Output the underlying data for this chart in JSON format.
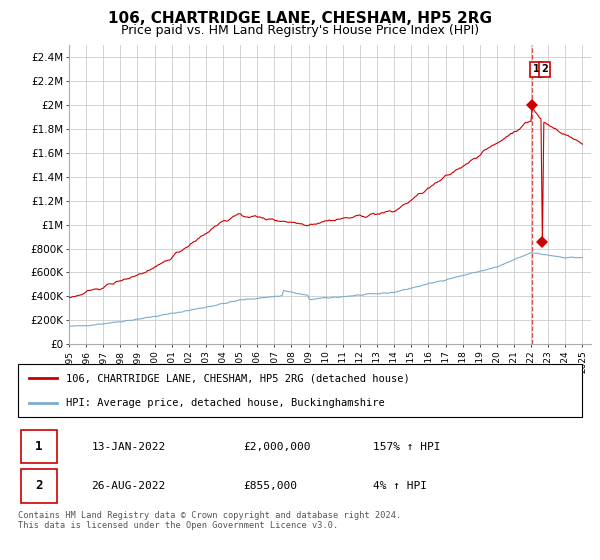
{
  "title": "106, CHARTRIDGE LANE, CHESHAM, HP5 2RG",
  "subtitle": "Price paid vs. HM Land Registry's House Price Index (HPI)",
  "title_fontsize": 11,
  "subtitle_fontsize": 9,
  "yticks": [
    0,
    200000,
    400000,
    600000,
    800000,
    1000000,
    1200000,
    1400000,
    1600000,
    1800000,
    2000000,
    2200000,
    2400000
  ],
  "ytick_labels": [
    "£0",
    "£200K",
    "£400K",
    "£600K",
    "£800K",
    "£1M",
    "£1.2M",
    "£1.4M",
    "£1.6M",
    "£1.8M",
    "£2M",
    "£2.2M",
    "£2.4M"
  ],
  "xlim_start": 1995.0,
  "xlim_end": 2025.5,
  "ylim_min": 0,
  "ylim_max": 2500000,
  "red_line_color": "#cc0000",
  "blue_line_color": "#7aadcf",
  "annotation_box_color": "#cc0000",
  "grid_color": "#cccccc",
  "background_color": "#ffffff",
  "legend_label_red": "106, CHARTRIDGE LANE, CHESHAM, HP5 2RG (detached house)",
  "legend_label_blue": "HPI: Average price, detached house, Buckinghamshire",
  "table_row1": [
    "1",
    "13-JAN-2022",
    "£2,000,000",
    "157% ↑ HPI"
  ],
  "table_row2": [
    "2",
    "26-AUG-2022",
    "£855,000",
    "4% ↑ HPI"
  ],
  "footnote": "Contains HM Land Registry data © Crown copyright and database right 2024.\nThis data is licensed under the Open Government Licence v3.0.",
  "sale1_x": 2022.04,
  "sale1_y": 2000000,
  "sale2_x": 2022.65,
  "sale2_y": 855000,
  "vline_x": 2022.04
}
